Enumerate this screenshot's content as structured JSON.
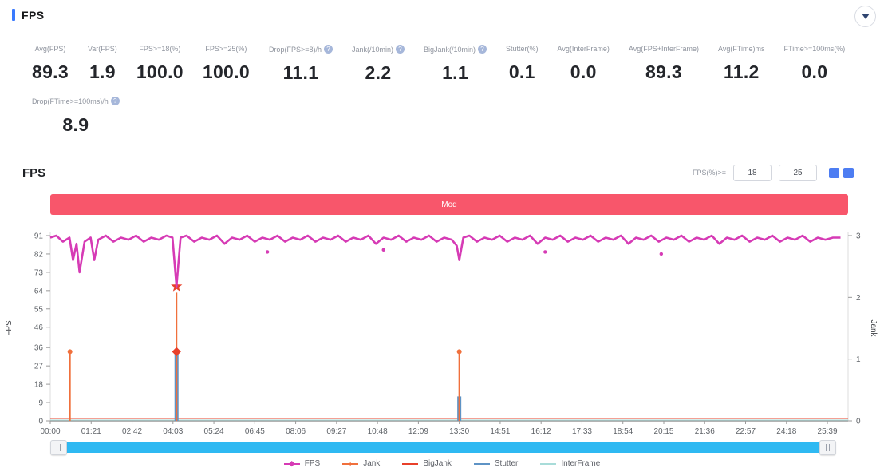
{
  "header": {
    "title": "FPS"
  },
  "stats": {
    "row1": [
      {
        "label": "Avg(FPS)",
        "value": "89.3",
        "info": false
      },
      {
        "label": "Var(FPS)",
        "value": "1.9",
        "info": false
      },
      {
        "label": "FPS>=18(%)",
        "value": "100.0",
        "info": false
      },
      {
        "label": "FPS>=25(%)",
        "value": "100.0",
        "info": false
      },
      {
        "label": "Drop(FPS>=8)/h",
        "value": "11.1",
        "info": true
      },
      {
        "label": "Jank(/10min)",
        "value": "2.2",
        "info": true
      },
      {
        "label": "BigJank(/10min)",
        "value": "1.1",
        "info": true
      },
      {
        "label": "Stutter(%)",
        "value": "0.1",
        "info": false
      },
      {
        "label": "Avg(InterFrame)",
        "value": "0.0",
        "info": false
      },
      {
        "label": "Avg(FPS+InterFrame)",
        "value": "89.3",
        "info": false
      },
      {
        "label": "Avg(FTime)ms",
        "value": "11.2",
        "info": false
      },
      {
        "label": "FTime>=100ms(%)",
        "value": "0.0",
        "info": false
      }
    ],
    "row2": [
      {
        "label": "Drop(FTime>=100ms)/h",
        "value": "8.9",
        "info": true
      }
    ]
  },
  "chart_section": {
    "title": "FPS",
    "threshold_label": "FPS(%)>=",
    "threshold1": "18",
    "threshold2": "25",
    "banner_text": "Mod",
    "banner_color": "#f8566b"
  },
  "chart_data": {
    "type": "line",
    "title": "FPS",
    "y_left": {
      "label": "FPS",
      "max": 91,
      "ticks": [
        0,
        9,
        18,
        27,
        36,
        46,
        55,
        64,
        73,
        82,
        91
      ]
    },
    "y_right": {
      "label": "Jank",
      "max": 3,
      "ticks": [
        0,
        1,
        2,
        3
      ]
    },
    "x_ticks": [
      "00:00",
      "01:21",
      "02:42",
      "04:03",
      "05:24",
      "06:45",
      "08:06",
      "09:27",
      "10:48",
      "12:09",
      "13:30",
      "14:51",
      "16:12",
      "17:33",
      "18:54",
      "20:15",
      "21:36",
      "22:57",
      "24:18",
      "25:39"
    ],
    "x_tick_interval_sec": 81,
    "x_max_sec": 1580,
    "grid": false,
    "series": [
      {
        "name": "FPS",
        "color": "#d63bb5",
        "points": [
          [
            0,
            90
          ],
          [
            12,
            91
          ],
          [
            25,
            88
          ],
          [
            38,
            90
          ],
          [
            45,
            79
          ],
          [
            52,
            87
          ],
          [
            58,
            73
          ],
          [
            68,
            88
          ],
          [
            80,
            90
          ],
          [
            87,
            79
          ],
          [
            95,
            89
          ],
          [
            110,
            91
          ],
          [
            125,
            88
          ],
          [
            140,
            90
          ],
          [
            155,
            89
          ],
          [
            170,
            91
          ],
          [
            185,
            88
          ],
          [
            200,
            90
          ],
          [
            215,
            89
          ],
          [
            230,
            91
          ],
          [
            242,
            90
          ],
          [
            250,
            66
          ],
          [
            258,
            90
          ],
          [
            270,
            91
          ],
          [
            285,
            88
          ],
          [
            300,
            90
          ],
          [
            315,
            89
          ],
          [
            330,
            91
          ],
          [
            345,
            87
          ],
          [
            360,
            90
          ],
          [
            375,
            89
          ],
          [
            390,
            91
          ],
          [
            405,
            88
          ],
          [
            420,
            90
          ],
          [
            435,
            89
          ],
          [
            450,
            91
          ],
          [
            465,
            88
          ],
          [
            480,
            90
          ],
          [
            495,
            89
          ],
          [
            510,
            91
          ],
          [
            525,
            88
          ],
          [
            540,
            90
          ],
          [
            555,
            89
          ],
          [
            570,
            91
          ],
          [
            585,
            88
          ],
          [
            600,
            90
          ],
          [
            615,
            89
          ],
          [
            630,
            91
          ],
          [
            645,
            87
          ],
          [
            660,
            90
          ],
          [
            675,
            89
          ],
          [
            690,
            91
          ],
          [
            705,
            88
          ],
          [
            720,
            90
          ],
          [
            735,
            89
          ],
          [
            750,
            91
          ],
          [
            765,
            88
          ],
          [
            780,
            90
          ],
          [
            795,
            89
          ],
          [
            805,
            86
          ],
          [
            810,
            79
          ],
          [
            818,
            90
          ],
          [
            830,
            91
          ],
          [
            845,
            88
          ],
          [
            860,
            90
          ],
          [
            875,
            89
          ],
          [
            890,
            91
          ],
          [
            905,
            88
          ],
          [
            920,
            90
          ],
          [
            935,
            89
          ],
          [
            950,
            91
          ],
          [
            965,
            87
          ],
          [
            980,
            90
          ],
          [
            995,
            89
          ],
          [
            1010,
            91
          ],
          [
            1025,
            88
          ],
          [
            1040,
            90
          ],
          [
            1055,
            89
          ],
          [
            1070,
            91
          ],
          [
            1085,
            88
          ],
          [
            1100,
            90
          ],
          [
            1115,
            89
          ],
          [
            1130,
            91
          ],
          [
            1145,
            87
          ],
          [
            1160,
            90
          ],
          [
            1175,
            89
          ],
          [
            1190,
            91
          ],
          [
            1205,
            88
          ],
          [
            1220,
            90
          ],
          [
            1235,
            89
          ],
          [
            1250,
            91
          ],
          [
            1265,
            88
          ],
          [
            1280,
            90
          ],
          [
            1295,
            89
          ],
          [
            1310,
            91
          ],
          [
            1325,
            87
          ],
          [
            1340,
            90
          ],
          [
            1355,
            89
          ],
          [
            1370,
            91
          ],
          [
            1385,
            88
          ],
          [
            1400,
            90
          ],
          [
            1415,
            89
          ],
          [
            1430,
            91
          ],
          [
            1445,
            88
          ],
          [
            1460,
            90
          ],
          [
            1475,
            89
          ],
          [
            1490,
            91
          ],
          [
            1505,
            88
          ],
          [
            1520,
            90
          ],
          [
            1535,
            89
          ],
          [
            1550,
            90
          ],
          [
            1565,
            90
          ]
        ],
        "scatter_dips": [
          [
            430,
            83
          ],
          [
            660,
            84
          ],
          [
            980,
            83
          ],
          [
            1210,
            82
          ]
        ]
      },
      {
        "name": "Jank",
        "color": "#f0703c",
        "events": [
          {
            "t": 39,
            "height_fps": 34,
            "jank": 1,
            "top_marker": "dot"
          },
          {
            "t": 250,
            "height_fps": 63,
            "jank": 2,
            "top_marker": "none",
            "diamond_at_fps": 34
          },
          {
            "t": 810,
            "height_fps": 34,
            "jank": 1,
            "top_marker": "dot"
          }
        ]
      },
      {
        "name": "BigJank",
        "color": "#e8402a",
        "markers": [
          {
            "t": 250,
            "fps": 66,
            "shape": "star"
          }
        ],
        "baseline_fps": 1.2
      },
      {
        "name": "Stutter",
        "color": "#5e93c5",
        "bars": [
          {
            "t": 250,
            "height_fps": 33
          },
          {
            "t": 810,
            "height_fps": 12
          }
        ]
      },
      {
        "name": "InterFrame",
        "color": "#a8dcd9",
        "baseline_fps": 0.4
      }
    ]
  },
  "legend": [
    {
      "label": "FPS",
      "color": "#d63bb5",
      "marker": "diamond"
    },
    {
      "label": "Jank",
      "color": "#f0703c",
      "marker": "plus"
    },
    {
      "label": "BigJank",
      "color": "#e8402a",
      "marker": "line"
    },
    {
      "label": "Stutter",
      "color": "#5e93c5",
      "marker": "line"
    },
    {
      "label": "InterFrame",
      "color": "#a8dcd9",
      "marker": "line"
    }
  ],
  "slider": {
    "track_color": "#2fb9f2"
  }
}
